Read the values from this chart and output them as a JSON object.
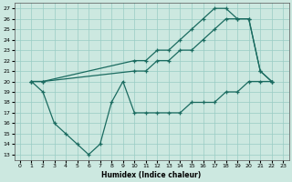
{
  "xlabel": "Humidex (Indice chaleur)",
  "bg_color": "#cce8e0",
  "grid_color": "#99ccc4",
  "line_color": "#1a6b60",
  "xlim": [
    -0.5,
    23.5
  ],
  "ylim": [
    12.5,
    27.5
  ],
  "xticks": [
    0,
    1,
    2,
    3,
    4,
    5,
    6,
    7,
    8,
    9,
    10,
    11,
    12,
    13,
    14,
    15,
    16,
    17,
    18,
    19,
    20,
    21,
    22,
    23
  ],
  "yticks": [
    13,
    14,
    15,
    16,
    17,
    18,
    19,
    20,
    21,
    22,
    23,
    24,
    25,
    26,
    27
  ],
  "line1_x": [
    1,
    2,
    10,
    11,
    12,
    13,
    14,
    15,
    16,
    17,
    18,
    19,
    20,
    21,
    22
  ],
  "line1_y": [
    20,
    20,
    22,
    22,
    23,
    23,
    24,
    25,
    26,
    27,
    27,
    26,
    26,
    21,
    20
  ],
  "line2_x": [
    1,
    2,
    10,
    11,
    12,
    13,
    14,
    15,
    16,
    17,
    18,
    19,
    20,
    21,
    22
  ],
  "line2_y": [
    20,
    20,
    21,
    21,
    22,
    22,
    23,
    23,
    24,
    25,
    26,
    26,
    26,
    21,
    20
  ],
  "line3_x": [
    1,
    2,
    3,
    4,
    5,
    6,
    7,
    8,
    9,
    10,
    11,
    12,
    13,
    14,
    15,
    16,
    17,
    18,
    19,
    20,
    21,
    22
  ],
  "line3_y": [
    20,
    19,
    16,
    15,
    14,
    13,
    14,
    18,
    20,
    17,
    17,
    17,
    17,
    17,
    18,
    18,
    18,
    19,
    19,
    20,
    20,
    20
  ]
}
